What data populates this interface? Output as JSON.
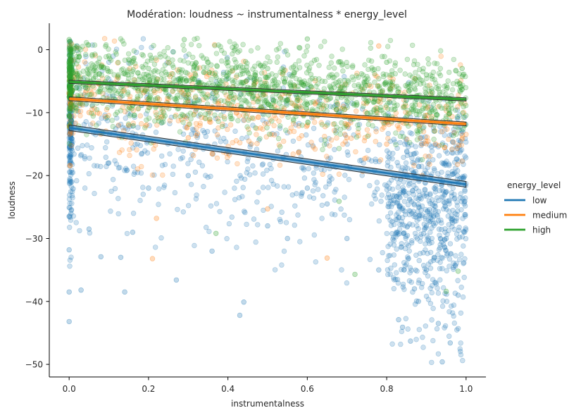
{
  "chart_data": {
    "type": "scatter",
    "title": "Modération: loudness ~ instrumentalness * energy_level",
    "xlabel": "instrumentalness",
    "ylabel": "loudness",
    "xlim": [
      -0.05,
      1.05
    ],
    "ylim": [
      -52,
      4.2
    ],
    "xticks": [
      0.0,
      0.2,
      0.4,
      0.6,
      0.8,
      1.0
    ],
    "xtick_labels": [
      "0.0",
      "0.2",
      "0.4",
      "0.6",
      "0.8",
      "1.0"
    ],
    "yticks": [
      0,
      -10,
      -20,
      -30,
      -40,
      -50
    ],
    "ytick_labels": [
      "0",
      "−10",
      "−20",
      "−30",
      "−40",
      "−50"
    ],
    "grid": false,
    "legend": {
      "title": "energy_level",
      "placement": "right"
    },
    "series": [
      {
        "name": "low",
        "color": "#1f77b4",
        "regression": {
          "x": [
            0.0,
            1.0
          ],
          "y": [
            -12.4,
            -21.4
          ]
        },
        "points_sample": [
          [
            0.0,
            -43.2
          ],
          [
            0.0,
            -38.5
          ],
          [
            0.0,
            -31.8
          ],
          [
            0.0,
            -26.5
          ],
          [
            0.01,
            -22.1
          ],
          [
            0.03,
            -38.2
          ],
          [
            0.05,
            -28.5
          ],
          [
            0.08,
            -32.9
          ],
          [
            0.13,
            -33.0
          ],
          [
            0.14,
            -38.5
          ],
          [
            0.16,
            -29.0
          ],
          [
            0.27,
            -36.6
          ],
          [
            0.36,
            -32.0
          ],
          [
            0.43,
            -42.2
          ],
          [
            0.44,
            -40.1
          ],
          [
            0.5,
            -28.0
          ],
          [
            0.55,
            -30.0
          ],
          [
            0.7,
            -30.0
          ],
          [
            0.78,
            -35.0
          ],
          [
            0.83,
            -42.9
          ],
          [
            0.84,
            -44.1
          ],
          [
            0.86,
            -46.3
          ],
          [
            0.87,
            -38.0
          ],
          [
            0.88,
            -40.0
          ],
          [
            0.9,
            -35.0
          ],
          [
            0.92,
            -33.0
          ],
          [
            0.93,
            -43.5
          ],
          [
            0.94,
            -49.6
          ],
          [
            0.96,
            -46.6
          ],
          [
            0.98,
            -39.0
          ],
          [
            0.9,
            -28.0
          ],
          [
            0.88,
            -25.0
          ],
          [
            0.92,
            -22.0
          ],
          [
            0.95,
            -30.0
          ],
          [
            0.85,
            -20.0
          ],
          [
            0.3,
            -20.0
          ],
          [
            0.2,
            -22.0
          ],
          [
            0.1,
            -18.0
          ],
          [
            0.6,
            -22.0
          ],
          [
            0.65,
            -24.5
          ]
        ]
      },
      {
        "name": "medium",
        "color": "#ff7f0e",
        "regression": {
          "x": [
            0.0,
            1.0
          ],
          "y": [
            -7.8,
            -11.8
          ]
        },
        "points_sample": [
          [
            0.0,
            -7.0
          ],
          [
            0.05,
            -10.0
          ],
          [
            0.21,
            -33.2
          ],
          [
            0.22,
            -26.8
          ],
          [
            0.3,
            -14.0
          ],
          [
            0.5,
            -25.3
          ],
          [
            0.6,
            -12.0
          ],
          [
            0.65,
            -33.1
          ],
          [
            0.78,
            0.6
          ],
          [
            0.8,
            -15.0
          ],
          [
            0.9,
            -11.0
          ],
          [
            0.95,
            -9.0
          ],
          [
            0.4,
            -8.0
          ],
          [
            0.15,
            -12.0
          ],
          [
            0.7,
            -14.0
          ]
        ]
      },
      {
        "name": "high",
        "color": "#2ca02c",
        "regression": {
          "x": [
            0.0,
            1.0
          ],
          "y": [
            -5.1,
            -7.9
          ]
        },
        "points_sample": [
          [
            0.0,
            1.6
          ],
          [
            0.0,
            -2.0
          ],
          [
            0.02,
            -4.0
          ],
          [
            0.1,
            -1.0
          ],
          [
            0.2,
            -3.0
          ],
          [
            0.29,
            1.6
          ],
          [
            0.37,
            -29.2
          ],
          [
            0.4,
            -2.0
          ],
          [
            0.5,
            -3.0
          ],
          [
            0.6,
            1.7
          ],
          [
            0.68,
            -24.1
          ],
          [
            0.72,
            -35.7
          ],
          [
            0.8,
            -2.0
          ],
          [
            0.9,
            -4.0
          ],
          [
            0.99,
            -3.0
          ],
          [
            0.95,
            -38.4
          ],
          [
            0.98,
            -35.2
          ],
          [
            0.55,
            -8.0
          ],
          [
            0.45,
            -6.0
          ],
          [
            0.3,
            -7.0
          ]
        ]
      }
    ]
  }
}
